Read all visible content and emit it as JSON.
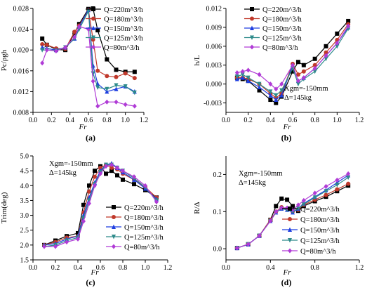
{
  "chart_data": [
    {
      "panel_label": "(a)",
      "type": "line",
      "xlabel": "Fr",
      "ylabel": "Pc/ρgh",
      "xlim": [
        0.0,
        1.2
      ],
      "ylim": [
        0.008,
        0.028
      ],
      "xticks": [
        0.0,
        0.2,
        0.4,
        0.6,
        0.8,
        1.0,
        1.2
      ],
      "yticks": [
        0.008,
        0.012,
        0.016,
        0.02,
        0.024,
        0.028
      ],
      "ytick_labels": [
        "0.008",
        "0.012",
        "0.016",
        "0.020",
        "0.024",
        "0.028"
      ],
      "legend_position": "top-right",
      "annotations": [],
      "x": [
        0.1,
        0.15,
        0.25,
        0.35,
        0.45,
        0.5,
        0.6,
        0.65,
        0.7,
        0.8,
        0.9,
        1.0,
        1.1
      ],
      "series": [
        {
          "name": "Q=220m^3/h",
          "color": "#000000",
          "marker": "square",
          "values": [
            0.0222,
            0.021,
            0.0201,
            0.02,
            0.0233,
            0.025,
            0.0279,
            0.028,
            0.0238,
            0.0182,
            0.0162,
            0.0158,
            0.0158
          ]
        },
        {
          "name": "Q=180m^3/h",
          "color": "#c0392b",
          "marker": "circle",
          "values": [
            0.0211,
            0.021,
            0.0203,
            0.0202,
            0.0235,
            0.0247,
            0.0277,
            0.022,
            0.016,
            0.015,
            0.0148,
            0.0155,
            0.0146
          ]
        },
        {
          "name": "Q=150m^3/h",
          "color": "#1f3fe0",
          "marker": "triangle-up",
          "values": [
            0.0205,
            0.0203,
            0.02,
            0.0205,
            0.0222,
            0.0245,
            0.0277,
            0.017,
            0.0135,
            0.012,
            0.0125,
            0.013,
            0.012
          ]
        },
        {
          "name": "Q=125m^3/h",
          "color": "#2e8b8b",
          "marker": "triangle-down",
          "values": [
            0.02,
            0.02,
            0.0199,
            0.0205,
            0.0222,
            0.024,
            0.0275,
            0.0155,
            0.0128,
            0.0125,
            0.0132,
            0.013,
            0.0118
          ]
        },
        {
          "name": "Q=80m^3/h",
          "color": "#b03bd6",
          "marker": "diamond",
          "values": [
            0.0175,
            0.02,
            0.0198,
            0.0205,
            0.0225,
            0.0245,
            0.024,
            0.014,
            0.0092,
            0.01,
            0.01,
            0.0095,
            0.0092
          ]
        }
      ]
    },
    {
      "panel_label": "(b)",
      "type": "line",
      "xlabel": "Fr",
      "ylabel": "h/L",
      "xlim": [
        0.0,
        1.2
      ],
      "ylim": [
        -0.0045,
        0.012
      ],
      "xticks": [
        0.0,
        0.2,
        0.4,
        0.6,
        0.8,
        1.0,
        1.2
      ],
      "yticks": [
        -0.003,
        0.0,
        0.003,
        0.006,
        0.009,
        0.012
      ],
      "ytick_labels": [
        "-0.003",
        "0.000",
        "0.003",
        "0.006",
        "0.009",
        "0.012"
      ],
      "legend_position": "top-right",
      "annotations": [
        "Xgm=-150mm",
        "Δ=145kg"
      ],
      "x": [
        0.1,
        0.15,
        0.2,
        0.3,
        0.4,
        0.45,
        0.5,
        0.6,
        0.65,
        0.7,
        0.8,
        0.9,
        1.0,
        1.1
      ],
      "series": [
        {
          "name": "Q=220m^3/h",
          "color": "#000000",
          "marker": "square",
          "values": [
            0.001,
            0.0008,
            0.0005,
            -0.001,
            -0.0025,
            -0.003,
            -0.002,
            0.002,
            0.0035,
            0.003,
            0.004,
            0.006,
            0.008,
            0.01
          ]
        },
        {
          "name": "Q=180m^3/h",
          "color": "#c0392b",
          "marker": "circle",
          "values": [
            0.001,
            0.001,
            0.0008,
            0.0,
            -0.0015,
            -0.0022,
            -0.0015,
            0.0032,
            0.0015,
            0.002,
            0.003,
            0.005,
            0.007,
            0.0095
          ]
        },
        {
          "name": "Q=150m^3/h",
          "color": "#1f3fe0",
          "marker": "triangle-up",
          "values": [
            0.0008,
            0.001,
            0.0005,
            -0.0005,
            -0.0018,
            -0.0025,
            -0.0018,
            0.003,
            0.0005,
            0.001,
            0.0025,
            0.0045,
            0.0065,
            0.009
          ]
        },
        {
          "name": "Q=125m^3/h",
          "color": "#2e8b8b",
          "marker": "triangle-down",
          "values": [
            0.0012,
            0.0015,
            0.001,
            0.0,
            -0.0012,
            -0.0018,
            -0.001,
            0.0025,
            0.0,
            0.0008,
            0.002,
            0.004,
            0.006,
            0.0088
          ]
        },
        {
          "name": "Q=80m^3/h",
          "color": "#b03bd6",
          "marker": "diamond",
          "values": [
            0.0018,
            0.002,
            0.0022,
            0.0015,
            0.0,
            -0.0008,
            0.0,
            0.003,
            0.0005,
            0.001,
            0.0025,
            0.0045,
            0.0065,
            0.0092
          ]
        }
      ]
    },
    {
      "panel_label": "(c)",
      "type": "line",
      "xlabel": "Fr",
      "ylabel": "Trim(deg)",
      "xlim": [
        0.0,
        1.2
      ],
      "ylim": [
        1.5,
        5.0
      ],
      "xticks": [
        0.0,
        0.2,
        0.4,
        0.6,
        0.8,
        1.0,
        1.2
      ],
      "yticks": [
        1.5,
        2.0,
        2.5,
        3.0,
        3.5,
        4.0,
        4.5,
        5.0
      ],
      "ytick_labels": [
        "1.5",
        "2.0",
        "2.5",
        "3.0",
        "3.5",
        "4.0",
        "4.5",
        "5.0"
      ],
      "legend_position": "bottom-right",
      "annotations": [
        "Xgm=-150mm",
        "Δ=145kg"
      ],
      "x": [
        0.1,
        0.2,
        0.3,
        0.4,
        0.45,
        0.5,
        0.55,
        0.6,
        0.65,
        0.7,
        0.75,
        0.8,
        0.9,
        1.0,
        1.1
      ],
      "series": [
        {
          "name": "Q=220m^3/h",
          "color": "#000000",
          "marker": "square",
          "values": [
            2.0,
            2.15,
            2.3,
            2.4,
            3.35,
            4.0,
            4.5,
            4.65,
            4.4,
            4.5,
            4.35,
            4.2,
            4.05,
            3.85,
            3.6
          ]
        },
        {
          "name": "Q=180m^3/h",
          "color": "#c0392b",
          "marker": "circle",
          "values": [
            2.0,
            2.1,
            2.25,
            2.3,
            3.1,
            3.8,
            4.3,
            4.6,
            4.7,
            4.6,
            4.55,
            4.4,
            4.2,
            3.95,
            3.6
          ]
        },
        {
          "name": "Q=150m^3/h",
          "color": "#1f3fe0",
          "marker": "triangle-up",
          "values": [
            2.0,
            2.05,
            2.2,
            2.3,
            3.0,
            3.6,
            4.1,
            4.5,
            4.7,
            4.75,
            4.6,
            4.45,
            4.2,
            3.9,
            3.55
          ]
        },
        {
          "name": "Q=125m^3/h",
          "color": "#2e8b8b",
          "marker": "triangle-down",
          "values": [
            1.95,
            2.0,
            2.15,
            2.25,
            2.9,
            3.5,
            4.05,
            4.45,
            4.7,
            4.7,
            4.6,
            4.5,
            4.25,
            3.95,
            3.5
          ]
        },
        {
          "name": "Q=80m^3/h",
          "color": "#b03bd6",
          "marker": "diamond",
          "values": [
            1.95,
            1.95,
            2.1,
            2.2,
            2.8,
            3.4,
            4.0,
            4.4,
            4.65,
            4.7,
            4.6,
            4.5,
            4.3,
            4.0,
            3.45
          ]
        }
      ]
    },
    {
      "panel_label": "(d)",
      "type": "line",
      "xlabel": "Fr",
      "ylabel": "R/Δ",
      "xlim": [
        0.0,
        1.2
      ],
      "ylim": [
        -0.03,
        0.25
      ],
      "xticks": [
        0.0,
        0.4,
        0.8,
        1.2
      ],
      "yticks": [
        0.0,
        0.1,
        0.2
      ],
      "ytick_labels": [
        "0.0",
        "0.1",
        "0.2"
      ],
      "legend_position": "bottom-right",
      "annotations": [
        "Xgm=-150mm",
        "Δ=145kg"
      ],
      "x": [
        0.1,
        0.2,
        0.3,
        0.4,
        0.45,
        0.5,
        0.55,
        0.6,
        0.65,
        0.7,
        0.8,
        0.9,
        1.0,
        1.1
      ],
      "series": [
        {
          "name": "Q=220m^3/h",
          "color": "#000000",
          "marker": "square",
          "values": [
            0.002,
            0.012,
            0.035,
            0.078,
            0.115,
            0.135,
            0.132,
            0.115,
            0.102,
            0.115,
            0.128,
            0.14,
            0.155,
            0.17
          ]
        },
        {
          "name": "Q=180m^3/h",
          "color": "#c0392b",
          "marker": "circle",
          "values": [
            0.002,
            0.012,
            0.035,
            0.078,
            0.1,
            0.112,
            0.108,
            0.1,
            0.105,
            0.118,
            0.132,
            0.145,
            0.16,
            0.175
          ]
        },
        {
          "name": "Q=150m^3/h",
          "color": "#1f3fe0",
          "marker": "triangle-up",
          "values": [
            0.002,
            0.012,
            0.035,
            0.075,
            0.098,
            0.108,
            0.105,
            0.098,
            0.108,
            0.122,
            0.14,
            0.158,
            0.178,
            0.198
          ]
        },
        {
          "name": "Q=125m^3/h",
          "color": "#2e8b8b",
          "marker": "triangle-down",
          "values": [
            0.002,
            0.012,
            0.035,
            0.075,
            0.098,
            0.108,
            0.105,
            0.1,
            0.108,
            0.12,
            0.138,
            0.155,
            0.172,
            0.192
          ]
        },
        {
          "name": "Q=80m^3/h",
          "color": "#b03bd6",
          "marker": "diamond",
          "values": [
            0.002,
            0.012,
            0.035,
            0.075,
            0.1,
            0.11,
            0.11,
            0.105,
            0.118,
            0.13,
            0.15,
            0.168,
            0.185,
            0.202
          ]
        }
      ]
    }
  ]
}
